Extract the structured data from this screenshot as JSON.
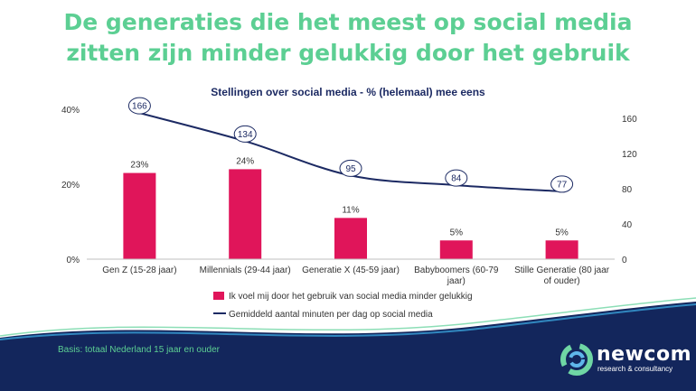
{
  "headline": {
    "line1": "De generaties die het meest op social media",
    "line2": "zitten zijn minder gelukkig door het gebruik"
  },
  "footer": {
    "basis": "Basis: totaal Nederland 15 jaar en ouder",
    "logo_name": "newcom",
    "logo_tagline": "research & consultancy"
  },
  "colors": {
    "headline": "#5ccf93",
    "bar": "#e0155a",
    "line": "#1c2a63",
    "footer_band": "#13265c"
  },
  "chart_data": {
    "type": "bar",
    "title": "Stellingen over social media - % (helemaal) mee eens",
    "categories": [
      [
        "Gen Z (15-28 jaar)"
      ],
      [
        "Millennials (29-44 jaar)"
      ],
      [
        "Generatie X (45-59 jaar)"
      ],
      [
        "Babyboomers (60-79",
        "jaar)"
      ],
      [
        "Stille Generatie (80 jaar",
        "of ouder)"
      ]
    ],
    "series": [
      {
        "name": "Ik voel mij door het gebruik van social media minder gelukkig",
        "type": "bar",
        "axis": "left",
        "values": [
          23,
          24,
          11,
          5,
          5
        ],
        "labels": [
          "23%",
          "24%",
          "11%",
          "5%",
          "5%"
        ]
      },
      {
        "name": "Gemiddeld aantal minuten per dag op social media",
        "type": "line",
        "axis": "right",
        "values": [
          166,
          134,
          95,
          84,
          77
        ],
        "labels": [
          "166",
          "134",
          "95",
          "84",
          "77"
        ]
      }
    ],
    "y_left": {
      "min": 0,
      "max": 40,
      "ticks": [
        0,
        20,
        40
      ],
      "tick_labels": [
        "0%",
        "20%",
        "40%"
      ]
    },
    "y_right": {
      "min": 0,
      "max": 160,
      "ticks": [
        0,
        40,
        80,
        120,
        160
      ],
      "tick_labels": [
        "0",
        "40",
        "80",
        "120",
        "160"
      ]
    },
    "grid": false,
    "legend": "bottom"
  }
}
